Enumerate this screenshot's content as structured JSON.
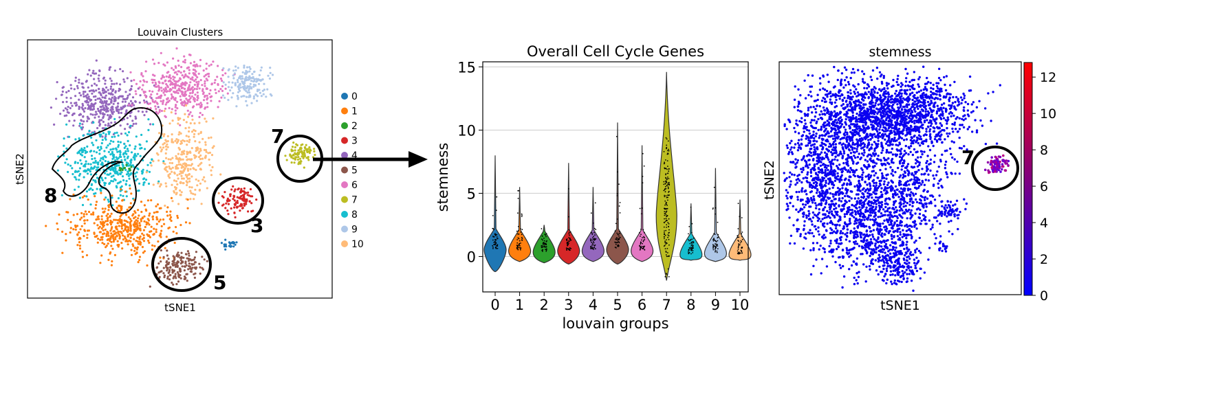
{
  "chart_data": [
    {
      "type": "scatter",
      "title": "Louvain Clusters",
      "xlabel": "tSNE1",
      "ylabel": "tSNE2",
      "legend_position": "right",
      "series": [
        {
          "name": "0",
          "color": "#1f77b4"
        },
        {
          "name": "1",
          "color": "#ff7f0e"
        },
        {
          "name": "2",
          "color": "#2ca02c"
        },
        {
          "name": "3",
          "color": "#d62728"
        },
        {
          "name": "4",
          "color": "#9467bd"
        },
        {
          "name": "5",
          "color": "#8c564b"
        },
        {
          "name": "6",
          "color": "#e377c2"
        },
        {
          "name": "7",
          "color": "#bcbd22"
        },
        {
          "name": "8",
          "color": "#17becf"
        },
        {
          "name": "9",
          "color": "#aec7e8"
        },
        {
          "name": "10",
          "color": "#ffbb78"
        }
      ],
      "annotations": [
        "7",
        "8",
        "3",
        "5"
      ]
    },
    {
      "type": "violin",
      "title": "Overall Cell Cycle Genes",
      "xlabel": "louvain groups",
      "ylabel": "stemness",
      "categories": [
        "0",
        "1",
        "2",
        "3",
        "4",
        "5",
        "6",
        "7",
        "8",
        "9",
        "10"
      ],
      "yticks": [
        "0",
        "5",
        "10",
        "15"
      ],
      "ylim": [
        -2.8,
        15.4
      ],
      "grid": true,
      "series": [
        {
          "name": "0",
          "min": -1.2,
          "max": 8.0,
          "median": 0.6,
          "color": "#1f77b4"
        },
        {
          "name": "1",
          "min": -0.4,
          "max": 5.5,
          "median": 0.5,
          "color": "#ff7f0e"
        },
        {
          "name": "2",
          "min": -0.5,
          "max": 2.5,
          "median": 0.4,
          "color": "#2ca02c"
        },
        {
          "name": "3",
          "min": -0.6,
          "max": 7.4,
          "median": 0.5,
          "color": "#d62728"
        },
        {
          "name": "4",
          "min": -0.4,
          "max": 5.5,
          "median": 0.5,
          "color": "#9467bd"
        },
        {
          "name": "5",
          "min": -0.6,
          "max": 10.6,
          "median": 0.6,
          "color": "#8c564b"
        },
        {
          "name": "6",
          "min": -0.4,
          "max": 8.8,
          "median": 0.5,
          "color": "#e377c2"
        },
        {
          "name": "7",
          "min": -1.9,
          "max": 14.6,
          "median": 4.0,
          "color": "#bcbd22"
        },
        {
          "name": "8",
          "min": -0.3,
          "max": 4.2,
          "median": 0.2,
          "color": "#17becf"
        },
        {
          "name": "9",
          "min": -0.4,
          "max": 7.0,
          "median": 0.3,
          "color": "#aec7e8"
        },
        {
          "name": "10",
          "min": -0.3,
          "max": 4.5,
          "median": 0.2,
          "color": "#ffbb78"
        }
      ]
    },
    {
      "type": "scatter",
      "title": "stemness",
      "xlabel": "tSNE1",
      "ylabel": "tSNE2",
      "colorbar": {
        "ticks": [
          "0",
          "2",
          "4",
          "6",
          "8",
          "10",
          "12"
        ],
        "range": [
          0,
          12.8
        ],
        "low_color": "#0000ff",
        "high_color": "#ff0000"
      },
      "annotations": [
        "7"
      ]
    }
  ]
}
